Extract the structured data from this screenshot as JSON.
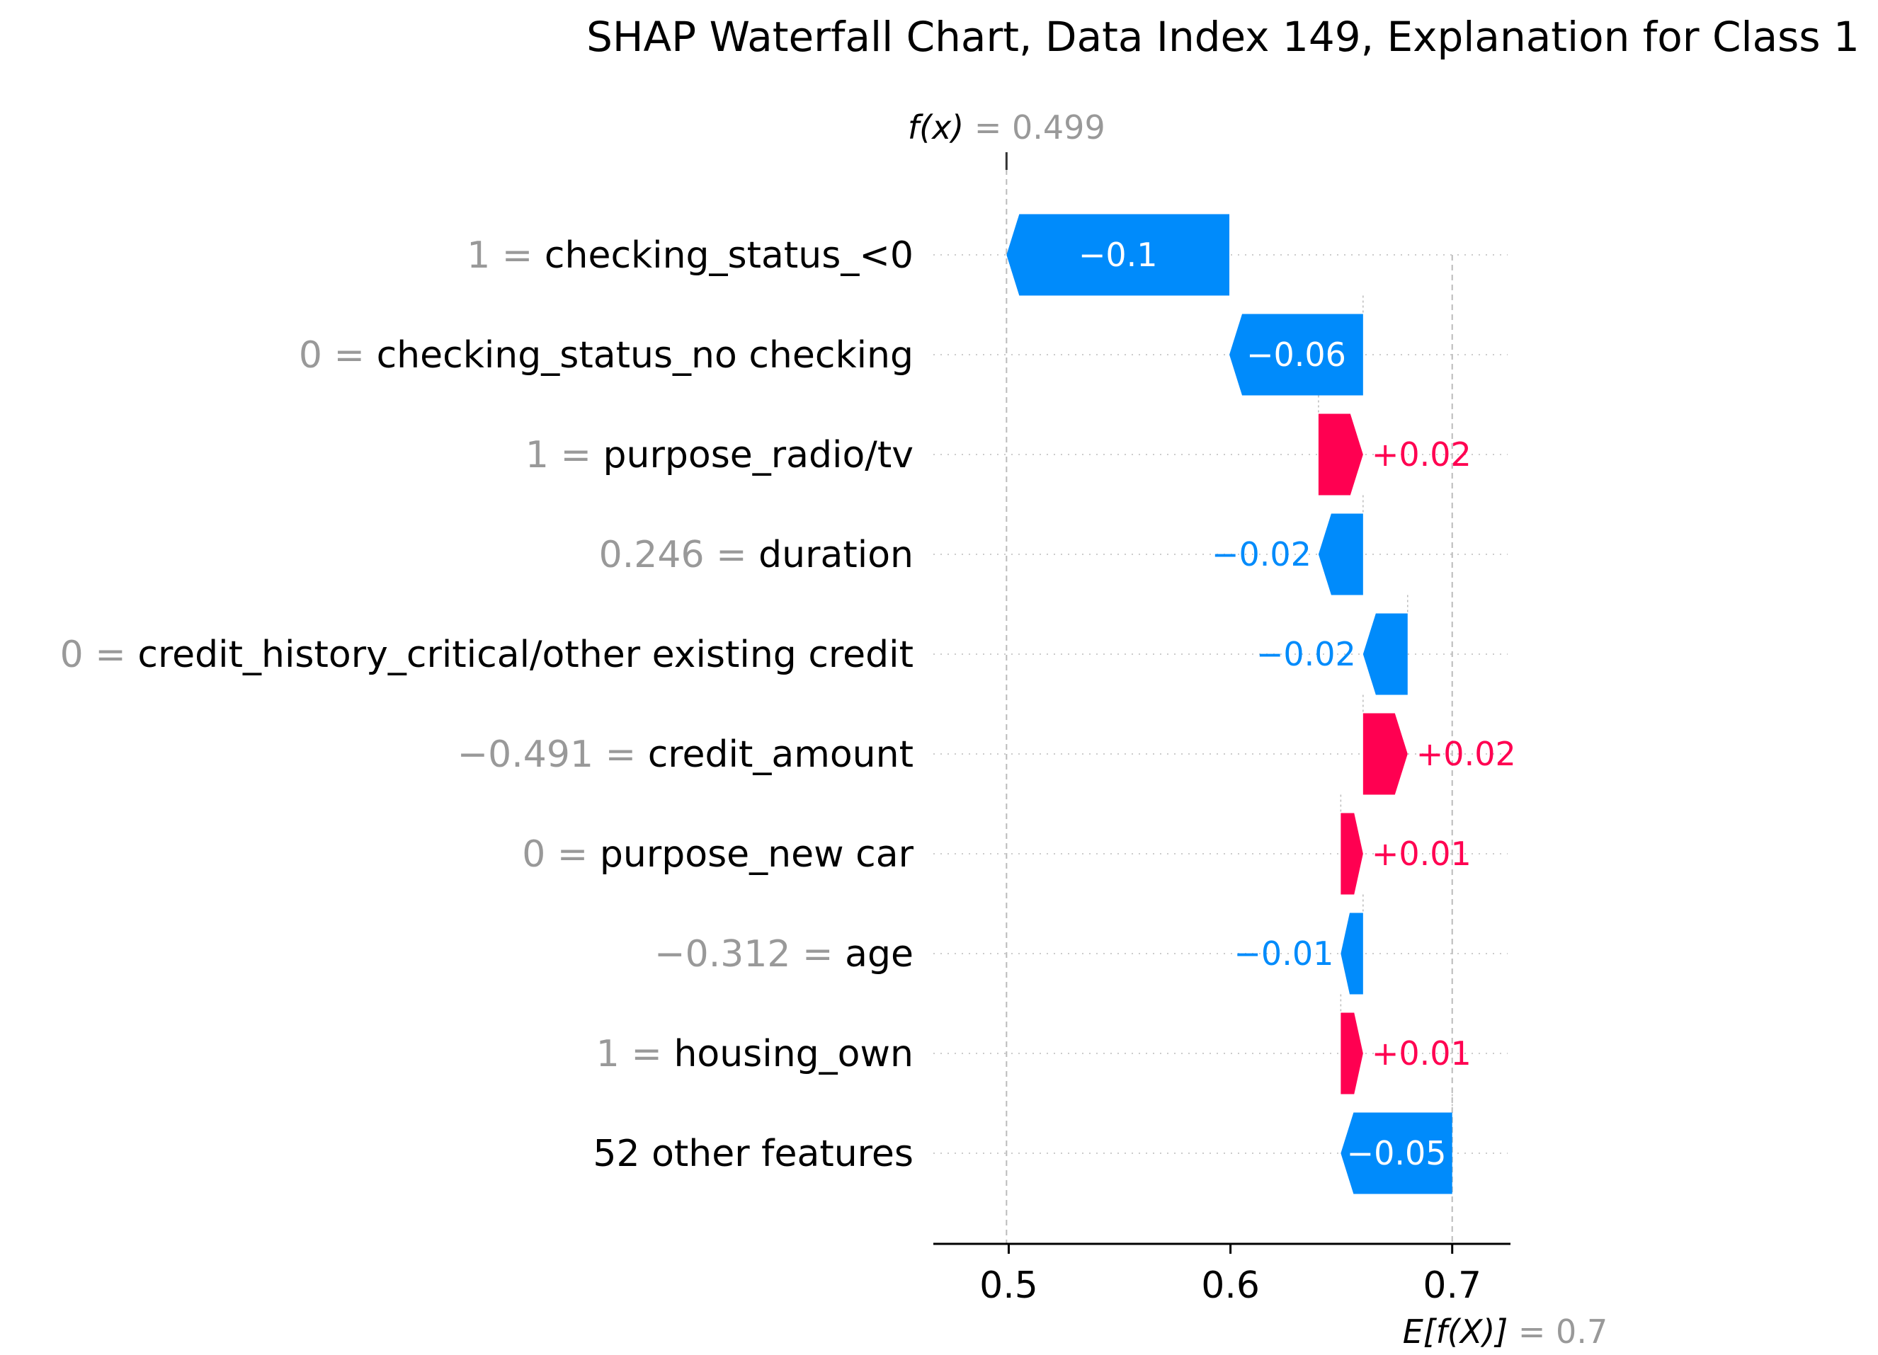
{
  "chart_data": {
    "type": "waterfall",
    "title": "SHAP Waterfall Chart, Data Index 149, Explanation for Class 1",
    "fx": {
      "label": "f(x)",
      "value_text": "0.499",
      "value": 0.499
    },
    "base": {
      "label": "E[f(X)]",
      "value_text": "0.7",
      "value": 0.7
    },
    "x_ticks": [
      {
        "value": 0.5,
        "label": "0.5"
      },
      {
        "value": 0.6,
        "label": "0.6"
      },
      {
        "value": 0.7,
        "label": "0.7"
      }
    ],
    "xlim": [
      0.466,
      0.725
    ],
    "features": [
      {
        "value": "1",
        "name": "checking_status_<0",
        "shap": -0.1,
        "label": "−0.1"
      },
      {
        "value": "0",
        "name": "checking_status_no checking",
        "shap": -0.06,
        "label": "−0.06"
      },
      {
        "value": "1",
        "name": "purpose_radio/tv",
        "shap": 0.02,
        "label": "+0.02"
      },
      {
        "value": "0.246",
        "name": "duration",
        "shap": -0.02,
        "label": "−0.02"
      },
      {
        "value": "0",
        "name": "credit_history_critical/other existing credit",
        "shap": -0.02,
        "label": "−0.02"
      },
      {
        "value": "−0.491",
        "name": "credit_amount",
        "shap": 0.02,
        "label": "+0.02"
      },
      {
        "value": "0",
        "name": "purpose_new car",
        "shap": 0.01,
        "label": "+0.01"
      },
      {
        "value": "−0.312",
        "name": "age",
        "shap": -0.01,
        "label": "−0.01"
      },
      {
        "value": "1",
        "name": "housing_own",
        "shap": 0.01,
        "label": "+0.01"
      },
      {
        "value": "",
        "name": "52 other features",
        "shap": -0.05,
        "label": "−0.05"
      }
    ],
    "colors": {
      "positive": "#ff0051",
      "negative": "#008bfb",
      "value_gray": "#999999",
      "guide": "#bbbbbb",
      "axis": "#000000"
    }
  }
}
